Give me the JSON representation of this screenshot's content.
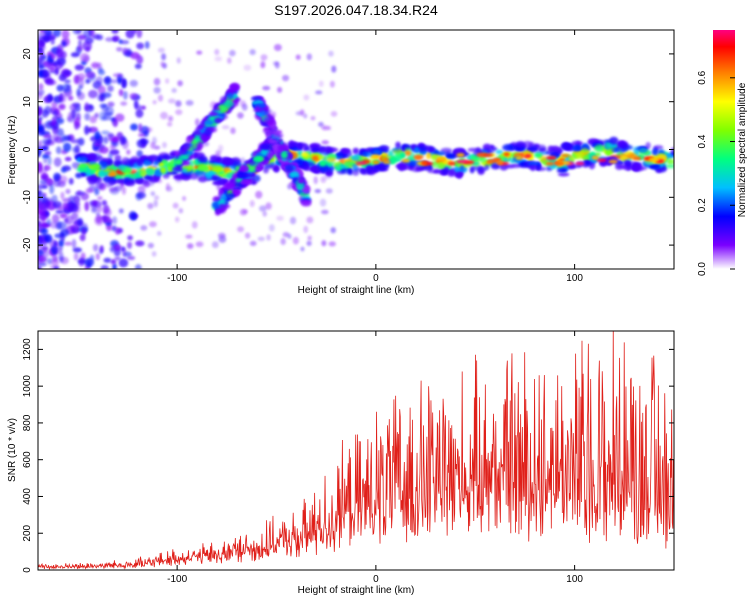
{
  "title": "S197.2026.047.18.34.R24",
  "colors": {
    "snr_line": "#e0201a",
    "axes": "#000000",
    "background": "#ffffff"
  },
  "chart_data": [
    {
      "type": "heatmap",
      "title": "S197.2026.047.18.34.R24",
      "xlabel": "Height of straight line (km)",
      "ylabel": "Frequency (Hz)",
      "xlim": [
        -170,
        150
      ],
      "ylim": [
        -25,
        25
      ],
      "xticks": [
        -100,
        0,
        100
      ],
      "xtick_labels": [
        "-100",
        "0",
        "100"
      ],
      "yticks": [
        -20,
        -10,
        0,
        10,
        20
      ],
      "ytick_labels": [
        "-20",
        "-10",
        "0",
        "10",
        "20"
      ],
      "colorbar": {
        "label": "Normalized spectral amplitude",
        "range": [
          0,
          0.75
        ],
        "ticks": [
          0,
          0.2,
          0.4,
          0.6
        ],
        "tick_labels": [
          "0.0",
          "0.2",
          "0.4",
          "0.6"
        ],
        "colormap": [
          "#ffffff",
          "#7a00ff",
          "#0000ff",
          "#00bfff",
          "#00ff80",
          "#80ff00",
          "#ffff00",
          "#ff8000",
          "#ff0000",
          "#ff0080"
        ]
      },
      "features": [
        {
          "name": "main band",
          "x_range": [
            -150,
            150
          ],
          "frequency_hz": -2,
          "peak_amplitude": 0.7
        },
        {
          "name": "rising streak",
          "x_range": [
            -100,
            -70
          ],
          "frequency_start_hz": -3,
          "frequency_end_hz": 12,
          "peak_amplitude": 0.5
        },
        {
          "name": "lower streak",
          "x_range": [
            -80,
            -50
          ],
          "frequency_start_hz": -12,
          "frequency_end_hz": 2,
          "peak_amplitude": 0.45
        },
        {
          "name": "secondary streak",
          "x_range": [
            -60,
            -35
          ],
          "frequency_start_hz": 10,
          "frequency_end_hz": -10,
          "peak_amplitude": 0.4
        }
      ]
    },
    {
      "type": "line",
      "xlabel": "Height of straight line (km)",
      "ylabel": "SNR (10 * v/v)",
      "xlim": [
        -170,
        150
      ],
      "ylim": [
        0,
        1300
      ],
      "xticks": [
        -100,
        0,
        100
      ],
      "xtick_labels": [
        "-100",
        "0",
        "100"
      ],
      "yticks": [
        0,
        200,
        400,
        600,
        800,
        1000,
        1200
      ],
      "ytick_labels": [
        "0",
        "200",
        "400",
        "600",
        "800",
        "1000",
        "1200"
      ],
      "envelope": {
        "x": [
          -170,
          -140,
          -120,
          -100,
          -80,
          -60,
          -40,
          -20,
          0,
          20,
          40,
          60,
          80,
          100,
          120,
          140,
          150
        ],
        "base": [
          10,
          15,
          20,
          40,
          60,
          80,
          120,
          180,
          250,
          300,
          320,
          320,
          300,
          280,
          260,
          230,
          200
        ],
        "peak": [
          30,
          40,
          60,
          110,
          140,
          220,
          290,
          580,
          820,
          950,
          1000,
          1080,
          1180,
          1200,
          1300,
          1180,
          1080
        ]
      },
      "samples": 1100
    }
  ]
}
